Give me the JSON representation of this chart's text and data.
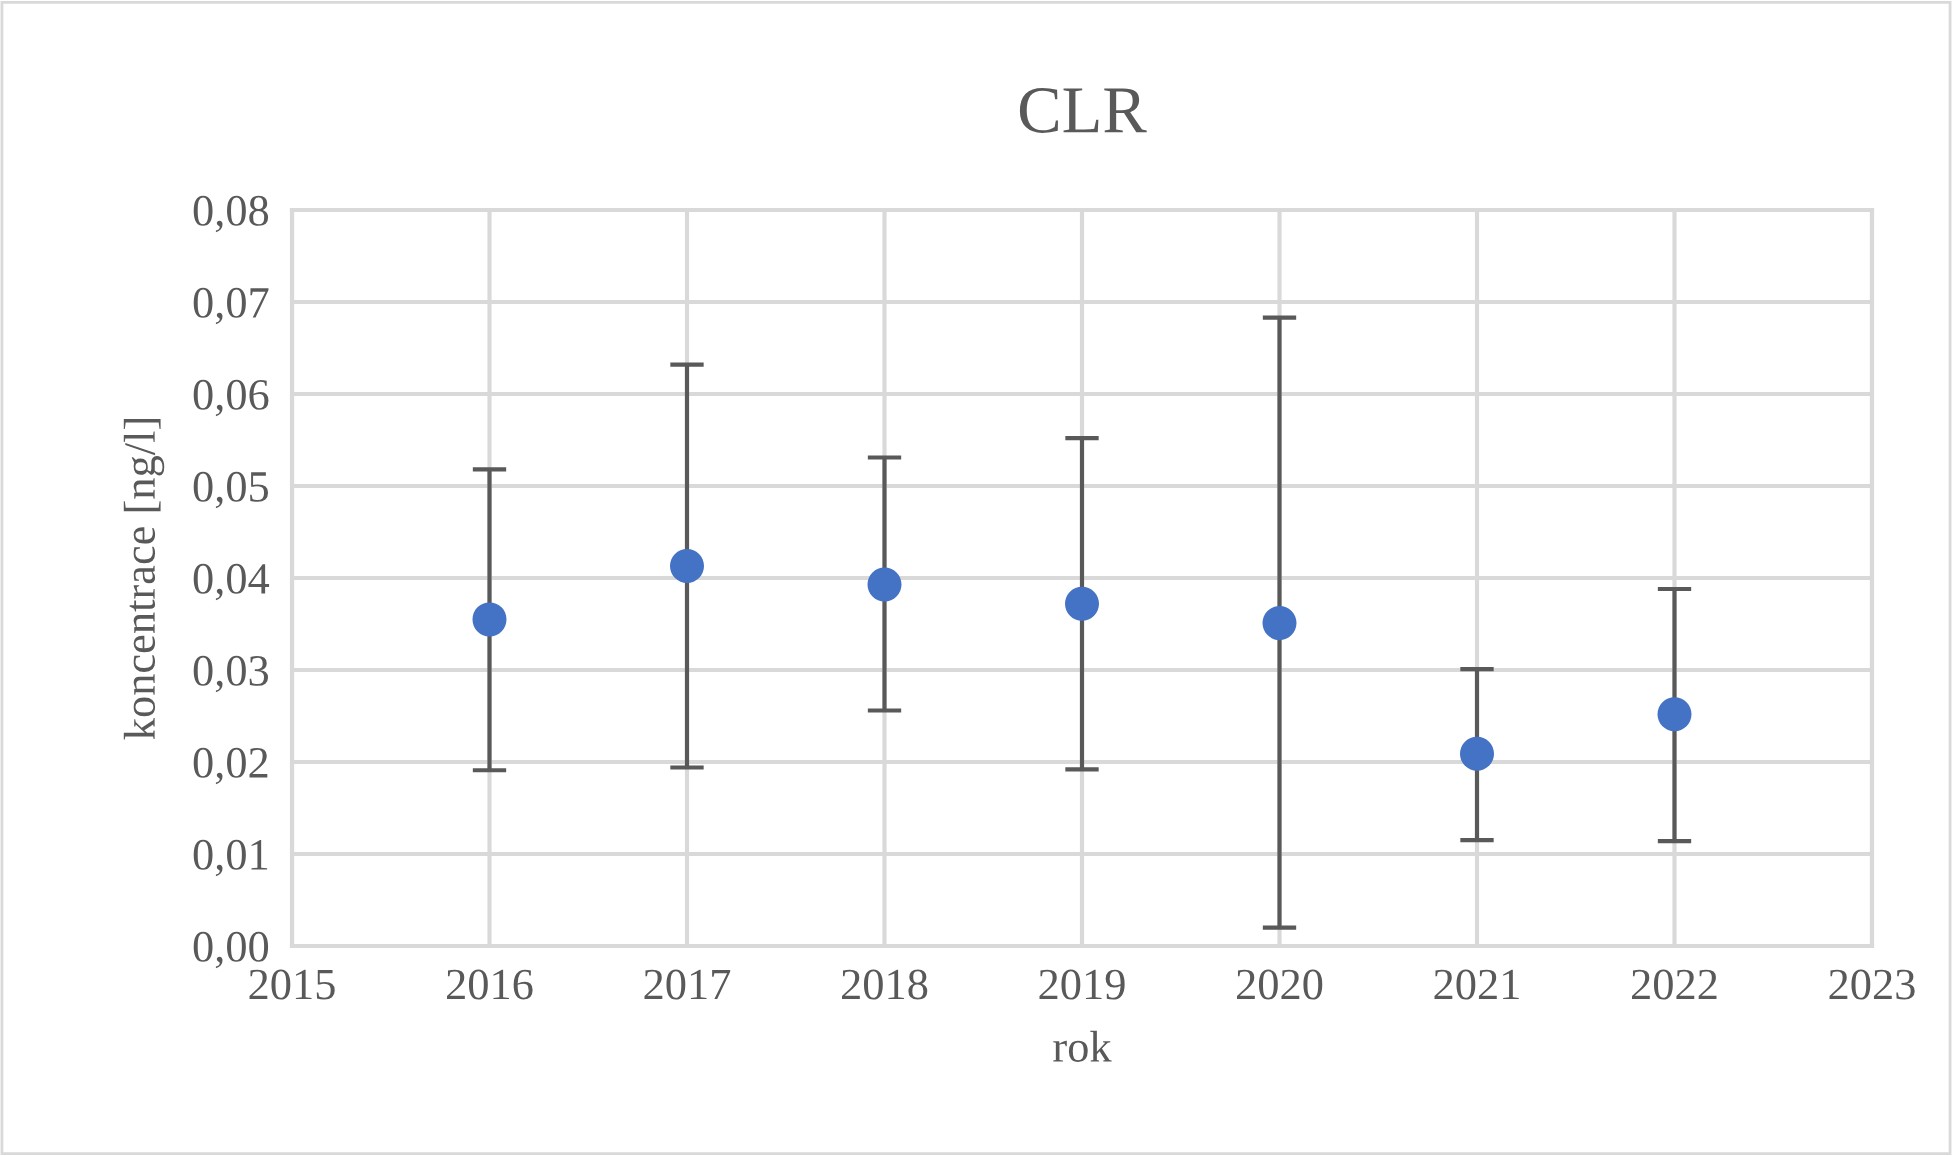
{
  "chart_data": {
    "type": "scatter",
    "title": "CLR",
    "xlabel": "rok",
    "ylabel": "koncentrace [ng/l]",
    "x": [
      2016,
      2017,
      2018,
      2019,
      2020,
      2021,
      2022
    ],
    "values": [
      0.0355,
      0.0413,
      0.0393,
      0.0372,
      0.0351,
      0.0209,
      0.0252
    ],
    "errors": [
      [
        0.0191,
        0.0518
      ],
      [
        0.0194,
        0.0632
      ],
      [
        0.0256,
        0.0531
      ],
      [
        0.0192,
        0.0552
      ],
      [
        0.002,
        0.0683
      ],
      [
        0.0115,
        0.0301
      ],
      [
        0.0114,
        0.0388
      ]
    ],
    "color": "#4472c4",
    "marker": "circle",
    "grid": true,
    "xlim": [
      2015,
      2023
    ],
    "xticks": [
      2015,
      2016,
      2017,
      2018,
      2019,
      2020,
      2021,
      2022,
      2023
    ],
    "ylim": [
      0,
      0.08
    ],
    "yticks": [
      {
        "value": 0,
        "label": "0,00"
      },
      {
        "value": 0.01,
        "label": "0,01"
      },
      {
        "value": 0.02,
        "label": "0,02"
      },
      {
        "value": 0.03,
        "label": "0,03"
      },
      {
        "value": 0.04,
        "label": "0,04"
      },
      {
        "value": 0.05,
        "label": "0,05"
      },
      {
        "value": 0.06,
        "label": "0,06"
      },
      {
        "value": 0.07,
        "label": "0,07"
      },
      {
        "value": 0.08,
        "label": "0,08"
      }
    ]
  }
}
